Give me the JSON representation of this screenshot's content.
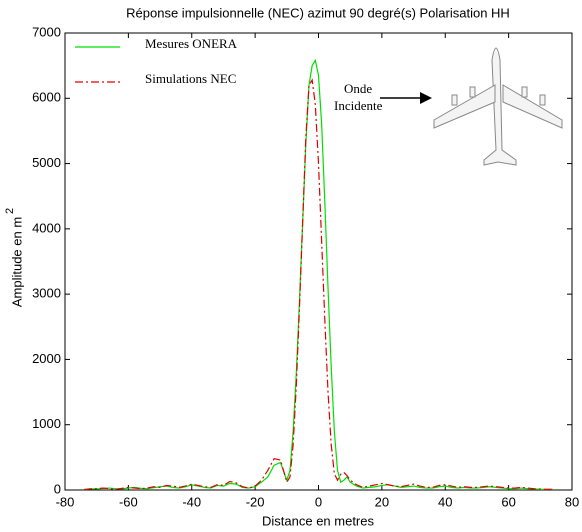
{
  "chart_data": {
    "type": "line",
    "title": "Réponse impulsionnelle (NEC) azimut 90 degré(s) Polarisation HH",
    "x_label": "Distance en metres",
    "y_label": "Amplitude en m",
    "y_label_superscript": "2",
    "annotations": [
      "Onde",
      "Incidente"
    ],
    "x": [
      -74,
      -72,
      -70,
      -68,
      -66,
      -64,
      -62,
      -60,
      -58,
      -56,
      -54,
      -52,
      -50,
      -48,
      -46,
      -44,
      -42,
      -40,
      -38,
      -36,
      -34,
      -32,
      -30,
      -28,
      -26,
      -24,
      -22,
      -20,
      -18,
      -16,
      -14,
      -12,
      -10,
      -9,
      -8,
      -7,
      -6,
      -5,
      -4,
      -3,
      -2,
      -1,
      0,
      1,
      2,
      3,
      4,
      5,
      6,
      7,
      8,
      9,
      10,
      12,
      14,
      16,
      18,
      20,
      22,
      24,
      26,
      28,
      30,
      32,
      34,
      36,
      38,
      40,
      42,
      44,
      46,
      48,
      50,
      52,
      54,
      56,
      58,
      60,
      62,
      64,
      66,
      68,
      70,
      72,
      74
    ],
    "series": [
      {
        "name": "Mesures ONERA",
        "color": "#00e000",
        "linestyle": "solid",
        "values": [
          10,
          20,
          15,
          25,
          30,
          20,
          15,
          30,
          40,
          25,
          20,
          35,
          50,
          60,
          40,
          30,
          50,
          80,
          60,
          40,
          30,
          70,
          60,
          100,
          90,
          40,
          30,
          50,
          120,
          200,
          380,
          420,
          150,
          300,
          900,
          1800,
          2900,
          4100,
          5300,
          6200,
          6500,
          6580,
          6350,
          5600,
          4400,
          3100,
          1900,
          900,
          300,
          120,
          150,
          200,
          120,
          60,
          30,
          40,
          50,
          70,
          80,
          60,
          40,
          50,
          60,
          40,
          30,
          30,
          50,
          60,
          40,
          30,
          40,
          30,
          30,
          40,
          50,
          40,
          30,
          20,
          20,
          30,
          20,
          15,
          10,
          10,
          10
        ]
      },
      {
        "name": "Simulations NEC",
        "color": "#e00000",
        "linestyle": "dashdot",
        "values": [
          5,
          15,
          20,
          30,
          20,
          10,
          25,
          40,
          30,
          20,
          30,
          50,
          40,
          70,
          60,
          40,
          60,
          90,
          70,
          50,
          40,
          80,
          70,
          130,
          110,
          50,
          30,
          60,
          150,
          300,
          480,
          460,
          120,
          200,
          700,
          1600,
          2800,
          4100,
          5400,
          6200,
          6280,
          5900,
          5000,
          3800,
          2600,
          1500,
          700,
          250,
          150,
          240,
          270,
          220,
          150,
          80,
          40,
          60,
          80,
          100,
          80,
          60,
          50,
          70,
          90,
          60,
          40,
          40,
          70,
          80,
          60,
          40,
          50,
          40,
          40,
          50,
          60,
          50,
          40,
          30,
          30,
          40,
          30,
          20,
          15,
          10,
          10
        ]
      }
    ],
    "xlim": [
      -80,
      80
    ],
    "xticks": [
      -80,
      -60,
      -40,
      -20,
      0,
      20,
      40,
      60,
      80
    ],
    "ylim": [
      0,
      7000
    ],
    "yticks": [
      0,
      1000,
      2000,
      3000,
      4000,
      5000,
      6000,
      7000
    ],
    "grid": false,
    "legend": "upper left"
  }
}
